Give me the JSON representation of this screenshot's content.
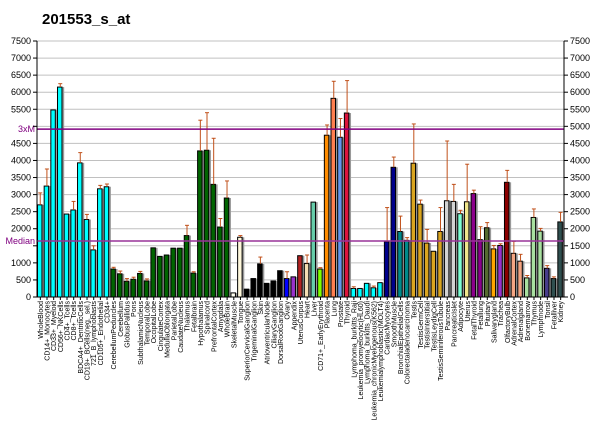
{
  "chart_data": {
    "type": "bar",
    "title": "201553_s_at",
    "xlabel": "",
    "ylabel": "",
    "ylim": [
      0,
      7500
    ],
    "yticks": [
      0,
      500,
      1000,
      1500,
      2000,
      2500,
      3000,
      3500,
      4000,
      4500,
      5000,
      5500,
      6000,
      6500,
      7000,
      7500
    ],
    "grid": true,
    "reference_lines": [
      {
        "label": "3xM",
        "value": 4920,
        "color": "#800080"
      },
      {
        "label": "Median",
        "value": 1640,
        "color": "#993399"
      }
    ],
    "categories": [
      "WholeBlood",
      "CD14+_Monocytes",
      "CD33+_Myeloid",
      "CD56+_NKCells",
      "CD4+_Tcells",
      "CD8+_Tcells",
      "BDCA4+_DentriticCells",
      "CD19+_BCells(neg._sel.)",
      "721_B_lymphoblasts",
      "CD105+_Endothelial",
      "CD34+",
      "CerebellumPeduncles",
      "Cerebellum",
      "GlobusPallidus",
      "Pons",
      "SubthalamicNucleus",
      "TemporalLobe",
      "OccipitalLobe",
      "CingulateCortex",
      "MedullaOblongata",
      "ParietalLobe",
      "CaudateNucleus",
      "Thalamus",
      "Fetalbrain",
      "Hypothalamus",
      "Spinalcord",
      "PrefrontalCortex",
      "Amygdala",
      "WholeBrain",
      "SkeletalMuscle",
      "Tongue",
      "SuperiorCervicalGanglion",
      "TrigeminalGanglion",
      "Skin",
      "AtrioventricularNode",
      "CiliaryGanglion",
      "DorsalRootGanglion",
      "Ovary",
      "Appendix",
      "UterusCorpus",
      "Heart",
      "Liver",
      "CD71+_EarlyErythroid",
      "Placenta",
      "Lung",
      "Prostate",
      "Thyroid",
      "Lymphoma_burkitts_Raji",
      "Leukemia_promyelocytic(HL60)",
      "Lymphoma_burkitts_Daudi",
      "Leukemia_chronicMyelogenous(K562)",
      "Leukemialymphoblastic(MOLT4)",
      "CardiacMyocytes",
      "SmoothMuscle",
      "BronchialEpithelialCells",
      "Colorectaladenocarcinoma",
      "Testis",
      "TestisGermCell",
      "TestisInterstitial",
      "TestisLeydigCell",
      "TestisSeminiferousTubule",
      "Pancreas",
      "PancreaticIslet",
      "Adipocyte",
      "Uterus",
      "FetalThyroid",
      "Fetallung",
      "Pituitary",
      "Salivarygland",
      "Trachea",
      "OlfactoryBulb",
      "AdrenalCortex",
      "Adrenalgland",
      "Bonemarrow",
      "Thymus",
      "Lymphnode",
      "Tonsil",
      "Fetalliver",
      "Kidney"
    ],
    "values": [
      2700,
      3250,
      5480,
      6150,
      2430,
      2550,
      3930,
      2270,
      1380,
      3170,
      3230,
      820,
      680,
      460,
      520,
      690,
      470,
      1440,
      1190,
      1230,
      1430,
      1430,
      1800,
      700,
      4280,
      4300,
      3300,
      2050,
      2900,
      120,
      1750,
      230,
      540,
      970,
      400,
      470,
      770,
      540,
      590,
      1210,
      980,
      2780,
      820,
      4740,
      5820,
      4680,
      5390,
      250,
      250,
      400,
      270,
      420,
      1620,
      3800,
      1920,
      1660,
      3920,
      2720,
      1580,
      1340,
      1920,
      2820,
      2800,
      2440,
      2790,
      3030,
      1680,
      2030,
      1410,
      1510,
      3360,
      1280,
      1050,
      560,
      2330,
      1930,
      840,
      540,
      2200
    ],
    "errors": [
      350,
      500,
      0,
      100,
      0,
      250,
      300,
      150,
      120,
      100,
      80,
      50,
      80,
      80,
      60,
      60,
      60,
      0,
      0,
      0,
      0,
      0,
      300,
      40,
      900,
      1100,
      1350,
      250,
      500,
      0,
      50,
      0,
      0,
      200,
      0,
      0,
      0,
      200,
      0,
      0,
      250,
      0,
      40,
      300,
      500,
      550,
      950,
      50,
      0,
      0,
      50,
      0,
      1000,
      300,
      450,
      80,
      1150,
      120,
      400,
      0,
      700,
      1750,
      500,
      100,
      1100,
      100,
      380,
      150,
      100,
      50,
      350,
      350,
      200,
      70,
      250,
      80,
      80,
      50,
      280
    ],
    "colors": [
      "#00ffff",
      "#00ffff",
      "#00ffff",
      "#00ffff",
      "#00ffff",
      "#00ffff",
      "#00ffff",
      "#00ffff",
      "#00ffff",
      "#00ffff",
      "#00ffff",
      "#006400",
      "#006400",
      "#006400",
      "#006400",
      "#006400",
      "#006400",
      "#006400",
      "#006400",
      "#006400",
      "#006400",
      "#006400",
      "#006400",
      "#006400",
      "#006400",
      "#006400",
      "#006400",
      "#006400",
      "#006400",
      "#fffff0",
      "#fff8dc",
      "#000000",
      "#000000",
      "#000000",
      "#000000",
      "#000000",
      "#000000",
      "#0000ff",
      "#9932cc",
      "#b22222",
      "#f5deb3",
      "#66cdaa",
      "#7fff00",
      "#ff8c00",
      "#ff7f50",
      "#6495ed",
      "#dc143c",
      "#00ffff",
      "#00ffff",
      "#00ffff",
      "#00ffff",
      "#00ffff",
      "#00008b",
      "#00008b",
      "#008b8b",
      "#008b8b",
      "#daa520",
      "#daa520",
      "#daa520",
      "#daa520",
      "#daa520",
      "#d3d3d3",
      "#d3d3d3",
      "#7fffd4",
      "#f0e68c",
      "#8b008b",
      "#8b008b",
      "#556b2f",
      "#ffa500",
      "#9932cc",
      "#8b0000",
      "#f4a582",
      "#f4a582",
      "#a8e0a0",
      "#a8e0a0",
      "#a8e0a0",
      "#483d8b",
      "#2f4f4f",
      "#2f4f4f"
    ]
  }
}
